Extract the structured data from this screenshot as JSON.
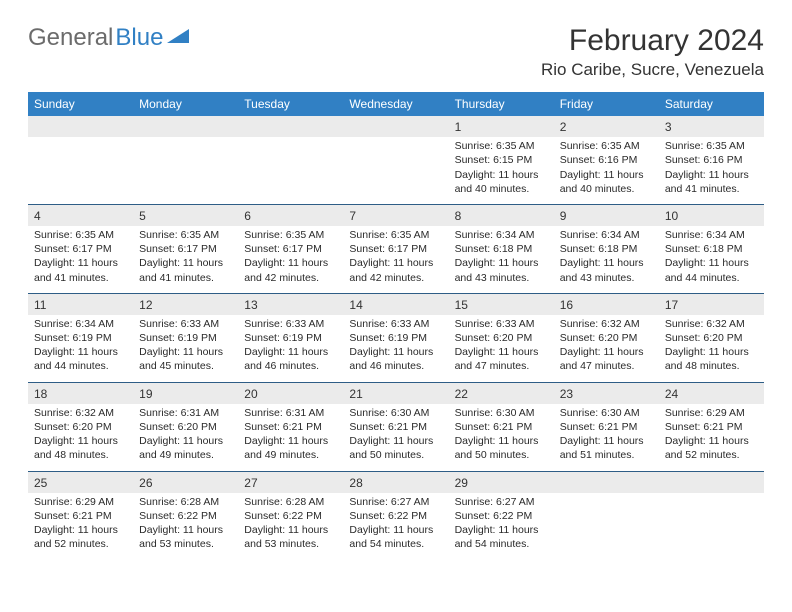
{
  "logo": {
    "text1": "General",
    "text2": "Blue"
  },
  "title": "February 2024",
  "location": "Rio Caribe, Sucre, Venezuela",
  "colors": {
    "header_bg": "#3180c4",
    "header_text": "#ffffff",
    "daynum_bg": "#ebebeb",
    "row_border": "#2e5d86",
    "body_text": "#2a2a2a",
    "logo_gray": "#6b6b6b",
    "logo_blue": "#3180c4"
  },
  "day_headers": [
    "Sunday",
    "Monday",
    "Tuesday",
    "Wednesday",
    "Thursday",
    "Friday",
    "Saturday"
  ],
  "weeks": [
    [
      null,
      null,
      null,
      null,
      {
        "n": "1",
        "sr": "6:35 AM",
        "ss": "6:15 PM",
        "dl": "11 hours and 40 minutes."
      },
      {
        "n": "2",
        "sr": "6:35 AM",
        "ss": "6:16 PM",
        "dl": "11 hours and 40 minutes."
      },
      {
        "n": "3",
        "sr": "6:35 AM",
        "ss": "6:16 PM",
        "dl": "11 hours and 41 minutes."
      }
    ],
    [
      {
        "n": "4",
        "sr": "6:35 AM",
        "ss": "6:17 PM",
        "dl": "11 hours and 41 minutes."
      },
      {
        "n": "5",
        "sr": "6:35 AM",
        "ss": "6:17 PM",
        "dl": "11 hours and 41 minutes."
      },
      {
        "n": "6",
        "sr": "6:35 AM",
        "ss": "6:17 PM",
        "dl": "11 hours and 42 minutes."
      },
      {
        "n": "7",
        "sr": "6:35 AM",
        "ss": "6:17 PM",
        "dl": "11 hours and 42 minutes."
      },
      {
        "n": "8",
        "sr": "6:34 AM",
        "ss": "6:18 PM",
        "dl": "11 hours and 43 minutes."
      },
      {
        "n": "9",
        "sr": "6:34 AM",
        "ss": "6:18 PM",
        "dl": "11 hours and 43 minutes."
      },
      {
        "n": "10",
        "sr": "6:34 AM",
        "ss": "6:18 PM",
        "dl": "11 hours and 44 minutes."
      }
    ],
    [
      {
        "n": "11",
        "sr": "6:34 AM",
        "ss": "6:19 PM",
        "dl": "11 hours and 44 minutes."
      },
      {
        "n": "12",
        "sr": "6:33 AM",
        "ss": "6:19 PM",
        "dl": "11 hours and 45 minutes."
      },
      {
        "n": "13",
        "sr": "6:33 AM",
        "ss": "6:19 PM",
        "dl": "11 hours and 46 minutes."
      },
      {
        "n": "14",
        "sr": "6:33 AM",
        "ss": "6:19 PM",
        "dl": "11 hours and 46 minutes."
      },
      {
        "n": "15",
        "sr": "6:33 AM",
        "ss": "6:20 PM",
        "dl": "11 hours and 47 minutes."
      },
      {
        "n": "16",
        "sr": "6:32 AM",
        "ss": "6:20 PM",
        "dl": "11 hours and 47 minutes."
      },
      {
        "n": "17",
        "sr": "6:32 AM",
        "ss": "6:20 PM",
        "dl": "11 hours and 48 minutes."
      }
    ],
    [
      {
        "n": "18",
        "sr": "6:32 AM",
        "ss": "6:20 PM",
        "dl": "11 hours and 48 minutes."
      },
      {
        "n": "19",
        "sr": "6:31 AM",
        "ss": "6:20 PM",
        "dl": "11 hours and 49 minutes."
      },
      {
        "n": "20",
        "sr": "6:31 AM",
        "ss": "6:21 PM",
        "dl": "11 hours and 49 minutes."
      },
      {
        "n": "21",
        "sr": "6:30 AM",
        "ss": "6:21 PM",
        "dl": "11 hours and 50 minutes."
      },
      {
        "n": "22",
        "sr": "6:30 AM",
        "ss": "6:21 PM",
        "dl": "11 hours and 50 minutes."
      },
      {
        "n": "23",
        "sr": "6:30 AM",
        "ss": "6:21 PM",
        "dl": "11 hours and 51 minutes."
      },
      {
        "n": "24",
        "sr": "6:29 AM",
        "ss": "6:21 PM",
        "dl": "11 hours and 52 minutes."
      }
    ],
    [
      {
        "n": "25",
        "sr": "6:29 AM",
        "ss": "6:21 PM",
        "dl": "11 hours and 52 minutes."
      },
      {
        "n": "26",
        "sr": "6:28 AM",
        "ss": "6:22 PM",
        "dl": "11 hours and 53 minutes."
      },
      {
        "n": "27",
        "sr": "6:28 AM",
        "ss": "6:22 PM",
        "dl": "11 hours and 53 minutes."
      },
      {
        "n": "28",
        "sr": "6:27 AM",
        "ss": "6:22 PM",
        "dl": "11 hours and 54 minutes."
      },
      {
        "n": "29",
        "sr": "6:27 AM",
        "ss": "6:22 PM",
        "dl": "11 hours and 54 minutes."
      },
      null,
      null
    ]
  ],
  "labels": {
    "sunrise": "Sunrise:",
    "sunset": "Sunset:",
    "daylight": "Daylight:"
  }
}
